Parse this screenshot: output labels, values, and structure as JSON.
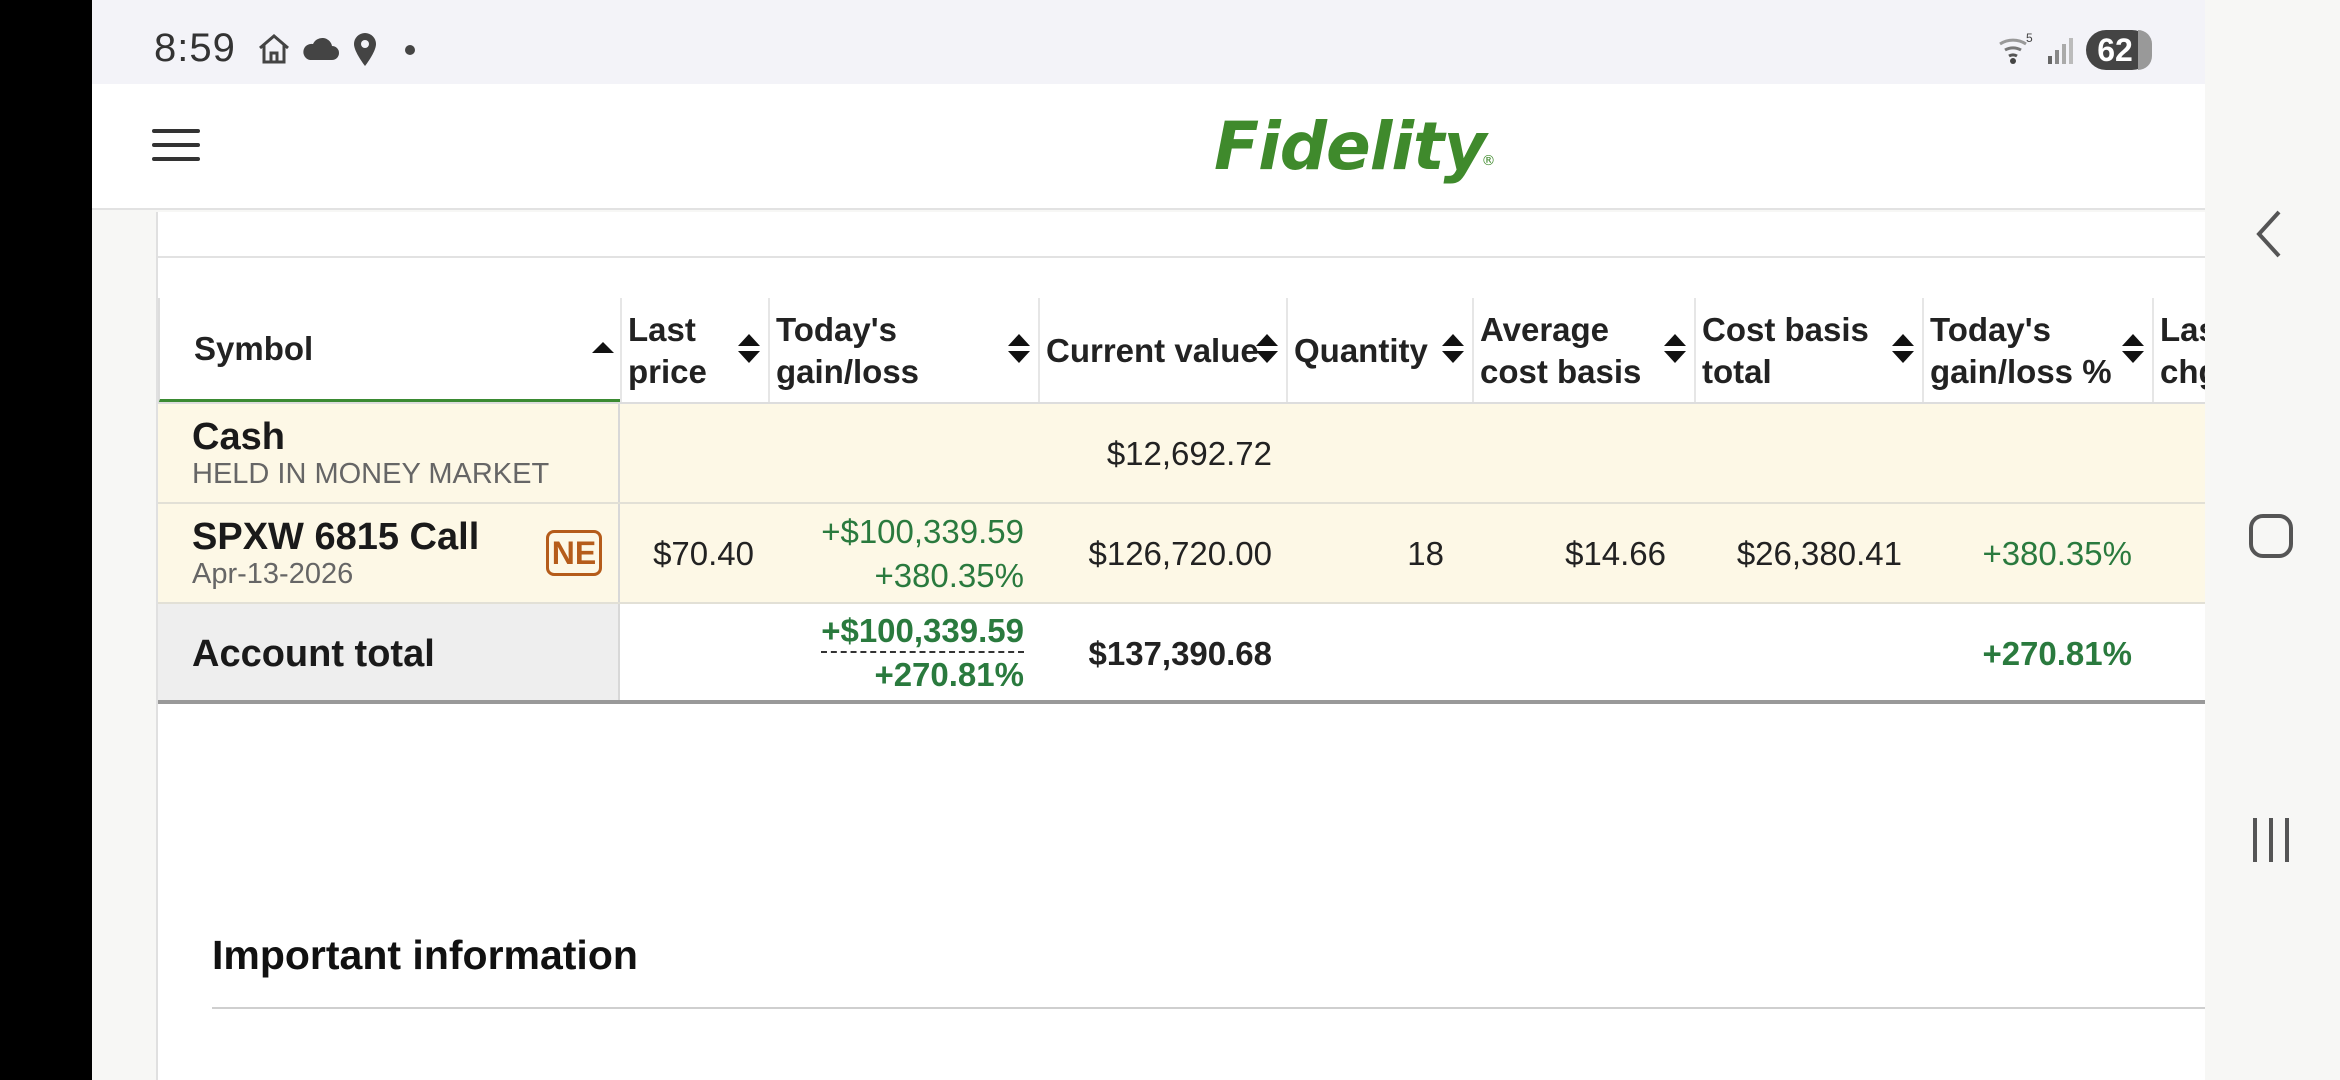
{
  "status_bar": {
    "time": "8:59",
    "icons": [
      "home-icon",
      "cloud-icon",
      "location-icon",
      "dot-icon",
      "wifi-icon",
      "signal-icon"
    ],
    "wifi_label": "5",
    "battery": "62"
  },
  "header": {
    "menu_icon": "hamburger-menu-icon",
    "logo": "Fidelity"
  },
  "table": {
    "columns": [
      "Symbol",
      "Last price",
      "Today's gain/loss",
      "Current value",
      "Quantity",
      "Average cost basis",
      "Cost basis total",
      "Today's gain/loss %",
      "Las chg"
    ],
    "column_lines": {
      "last_price": [
        "Last",
        "price"
      ],
      "todays_gain": [
        "Today's",
        "gain/loss"
      ],
      "avg_cost": [
        "Average",
        "cost basis"
      ],
      "cost_total": [
        "Cost basis",
        "total"
      ],
      "todays_gain_pct": [
        "Today's",
        "gain/loss %"
      ],
      "last_chg": [
        "Las",
        "chg"
      ]
    },
    "rows": [
      {
        "symbol": "Cash",
        "description": "HELD IN MONEY MARKET",
        "current_value": "$12,692.72"
      },
      {
        "symbol": "SPXW 6815 Call",
        "description": "Apr-13-2026",
        "badge": "NE",
        "last_price": "$70.40",
        "todays_gain": "+$100,339.59",
        "todays_gain_pct_inline": "+380.35%",
        "current_value": "$126,720.00",
        "quantity": "18",
        "avg_cost_basis": "$14.66",
        "cost_basis_total": "$26,380.41",
        "todays_gain_pct": "+380.35%"
      }
    ],
    "total": {
      "label": "Account total",
      "todays_gain": "+$100,339.59",
      "todays_gain_pct_inline": "+270.81%",
      "current_value": "$137,390.68",
      "todays_gain_pct": "+270.81%"
    }
  },
  "important_info": "Important information",
  "colors": {
    "brand_green": "#3f8a2c",
    "gain_green": "#2a7a3e",
    "badge_orange": "#b55c1a",
    "row_highlight": "#fdf8e6"
  },
  "nav_bar": [
    "back-icon",
    "home-icon",
    "recents-icon"
  ]
}
